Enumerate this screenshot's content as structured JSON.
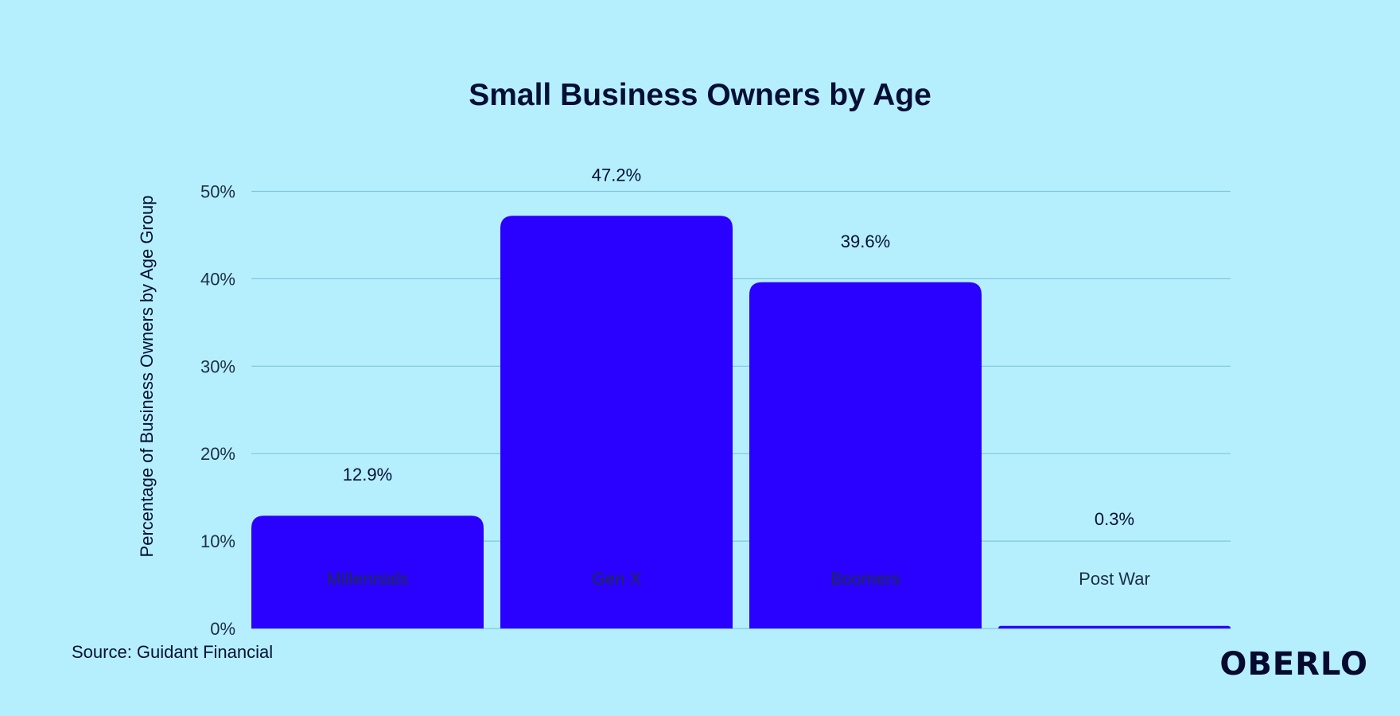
{
  "chart_data": {
    "type": "bar",
    "title": "Small Business Owners by Age",
    "xlabel": "",
    "ylabel": "Percentage of Business Owners by Age Group",
    "categories": [
      "Millennials",
      "Gen X",
      "Boomers",
      "Post War"
    ],
    "values": [
      12.9,
      47.2,
      39.6,
      0.3
    ],
    "data_labels": [
      "12.9%",
      "47.2%",
      "39.6%",
      "0.3%"
    ],
    "ylim": [
      0,
      50
    ],
    "yticks": [
      0,
      10,
      20,
      30,
      40,
      50
    ],
    "ytick_labels": [
      "0%",
      "10%",
      "20%",
      "30%",
      "40%",
      "50%"
    ],
    "grid": true,
    "colors": {
      "bar": "#2a00ff",
      "grid": "#7fc6d8",
      "background": "#b5effe"
    }
  },
  "source": "Source: Guidant Financial",
  "logo": "OBERLO"
}
